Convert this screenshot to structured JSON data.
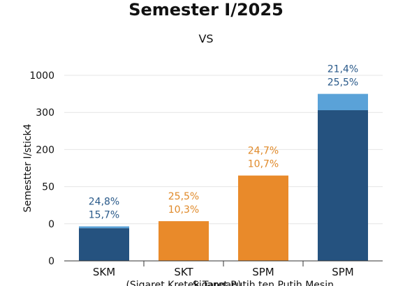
{
  "chart_data": {
    "type": "bar",
    "title": "Semester I/2025",
    "subtitle": "VS",
    "ylabel": "Semestter I/stick4",
    "xlabel": "",
    "yticks": [
      "1000",
      "300",
      "200",
      "50",
      "0",
      "0"
    ],
    "categories": [
      {
        "name": "SKM",
        "subname": ""
      },
      {
        "name": "SKT",
        "subname": "(Sigaret Kretek Tangan)"
      },
      {
        "name": "SPM",
        "subname": "Sigaret Putih ten Putih Mesin"
      },
      {
        "name": "SPM",
        "subname": ""
      }
    ],
    "tick_level_index": [
      0,
      1,
      2,
      3,
      4,
      5
    ],
    "bars": [
      {
        "total": 0.93,
        "dark": 0.88,
        "labels": [
          "24,8%",
          "15,7%"
        ],
        "color": "blue"
      },
      {
        "total": 1.07,
        "dark": 0,
        "labels": [
          "25,5%",
          "10,3%"
        ],
        "color": "orange"
      },
      {
        "total": 2.3,
        "dark": 0,
        "labels": [
          "24,7%",
          "10,7%"
        ],
        "color": "orange"
      },
      {
        "total": 4.5,
        "dark": 4.06,
        "labels": [
          "21,4%",
          "25,5%"
        ],
        "color": "blue"
      }
    ],
    "colors": {
      "dark_blue": "#25527f",
      "light_blue": "#5aa2d8",
      "orange": "#e98a2a",
      "blue_label": "#2a5a8a",
      "orange_label": "#e08a2a",
      "grid": "#e4e4e4",
      "axis": "#333333"
    },
    "grid": true,
    "legend": "none"
  }
}
